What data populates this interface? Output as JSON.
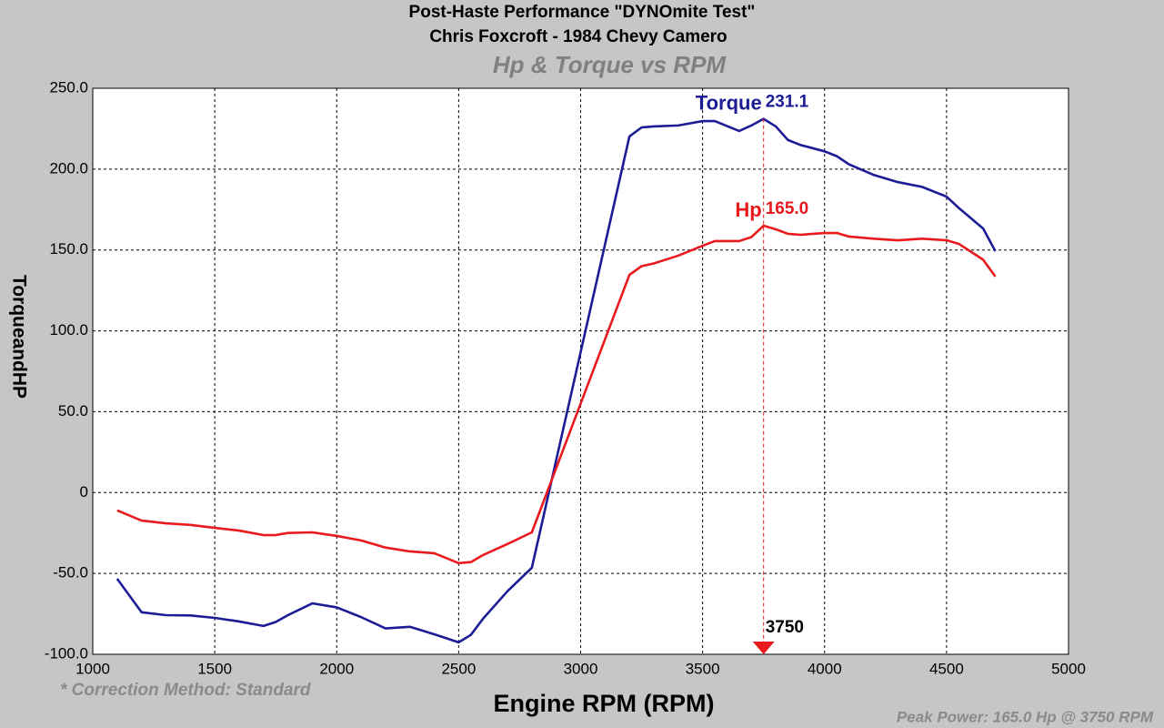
{
  "chart_data": {
    "type": "line",
    "title": "Post-Haste Performance \"DYNOmite Test\"",
    "subtitle": "Chris Foxcroft - 1984 Chevy Camero",
    "chart_title": "Hp & Torque vs RPM",
    "x_label": "Engine RPM (RPM)",
    "y_label": "TorqueandHP",
    "footnote_left": "* Correction Method: Standard",
    "footnote_right": "Peak Power: 165.0 Hp @ 3750 RPM",
    "x": [
      1100,
      1200,
      1300,
      1400,
      1500,
      1600,
      1700,
      1750,
      1800,
      1900,
      2000,
      2100,
      2200,
      2300,
      2400,
      2500,
      2550,
      2600,
      2700,
      2800,
      3200,
      3250,
      3300,
      3400,
      3500,
      3550,
      3650,
      3700,
      3750,
      3800,
      3850,
      3900,
      4000,
      4050,
      4100,
      4200,
      4300,
      4400,
      4500,
      4550,
      4650,
      4700
    ],
    "series": [
      {
        "name": "Torque",
        "color": "#1c1c96",
        "peak": {
          "value": 231.1
        },
        "values": [
          -53.3,
          -74,
          -75.8,
          -76,
          -77.5,
          -79.7,
          -82.5,
          -80,
          -75.8,
          -68.5,
          -71,
          -77,
          -84,
          -83,
          -87.6,
          -92.6,
          -88,
          -78,
          -61,
          -46.5,
          220.2,
          225.8,
          226.4,
          227,
          229.7,
          229.7,
          223.6,
          227,
          231.1,
          226.4,
          218,
          215,
          211,
          208,
          203,
          196.5,
          192,
          189,
          183,
          176,
          163.3,
          149.3
        ]
      },
      {
        "name": "Hp",
        "color": "#e81a1e",
        "peak": {
          "value": 165,
          "label": "165.0"
        },
        "values": [
          -11,
          -17.3,
          -19,
          -20,
          -21.8,
          -23.5,
          -26.3,
          -26.3,
          -25,
          -24.6,
          -26.8,
          -29.6,
          -34,
          -36.4,
          -37.5,
          -43.6,
          -43,
          -38.6,
          -31.8,
          -24.6,
          134.6,
          140,
          141.7,
          146.5,
          152.6,
          155.5,
          155.5,
          158,
          165,
          162.8,
          160,
          159.4,
          160.5,
          160.5,
          158.3,
          157,
          156,
          157,
          156,
          153.8,
          144,
          133.6
        ]
      }
    ],
    "peak_x": 3750,
    "xlim": [
      1000,
      5000
    ],
    "xticks": [
      1000,
      1500,
      2000,
      2500,
      3000,
      3500,
      4000,
      4500,
      5000
    ],
    "ylim": [
      -100,
      250
    ],
    "yticks": [
      {
        "value": -100,
        "label": "-100.0"
      },
      {
        "value": -50,
        "label": "-50.0"
      },
      0,
      {
        "value": 50,
        "label": "50.0"
      },
      {
        "value": 100,
        "label": "100.0"
      },
      {
        "value": 150,
        "label": "150.0"
      },
      {
        "value": 200,
        "label": "200.0"
      },
      {
        "value": 250,
        "label": "250.0"
      }
    ],
    "grid": true
  }
}
